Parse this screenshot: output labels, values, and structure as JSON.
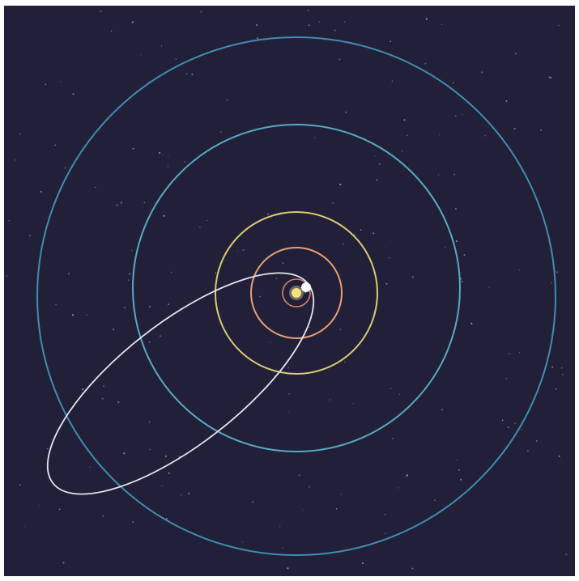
{
  "scene": {
    "background_color": "#222039",
    "star_color": "#9aa6c9",
    "sun": {
      "name": "sun",
      "color": "#f6e17f",
      "highlight_color": "#fff6c5"
    },
    "orbits": [
      {
        "name": "innermost-orbit",
        "color": "#d9806a"
      },
      {
        "name": "second-orbit",
        "color": "#e6a073"
      },
      {
        "name": "third-orbit",
        "color": "#d9cc72"
      },
      {
        "name": "fourth-orbit",
        "color": "#57a9c1"
      },
      {
        "name": "outer-orbit",
        "color": "#3f8db0"
      }
    ],
    "comet": {
      "name": "comet",
      "orbit_color": "#e4e4ea",
      "body_color": "#ffffff"
    }
  }
}
